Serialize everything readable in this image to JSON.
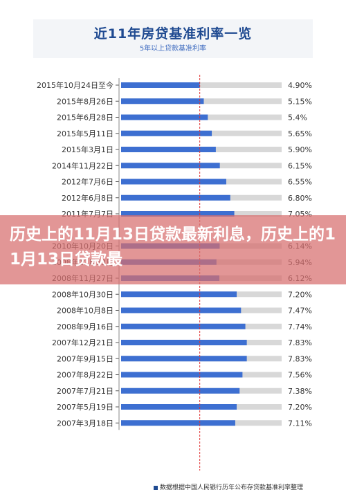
{
  "title": "近11年房贷基准利率一览",
  "subtitle": "5年以上贷款基准利率",
  "footnote": "数据根据中国人民银行历年公布存贷款基准利率整理",
  "headline": "历史上的11月13日贷款最新利息，历史上的11月13日贷款最",
  "colors": {
    "bar": "#3d6fd1",
    "track": "#d8d8d8",
    "title": "#1f4a91",
    "overlay": "#d76e6e",
    "reference_line": "#e03030"
  },
  "chart_data": {
    "type": "bar",
    "orientation": "horizontal",
    "title": "近11年房贷基准利率一览",
    "subtitle": "5年以上贷款基准利率",
    "categories": [
      "2015年10月24日至今",
      "2015年8月26日",
      "2015年6月28日",
      "2015年5月11日",
      "2015年3月1日",
      "2014年11月22日",
      "2012年7月6日",
      "2012年6月8日",
      "2011年7月7日",
      "",
      "2010年10月20日",
      "2008年12月23日",
      "2008年11月27日",
      "2008年10月30日",
      "2008年10月8日",
      "2008年9月16日",
      "2007年12月21日",
      "2007年9月15日",
      "2007年8月22日",
      "2007年7月21日",
      "2007年5月19日",
      "2007年3月18日"
    ],
    "values": [
      4.9,
      5.15,
      5.4,
      5.65,
      5.9,
      6.15,
      6.55,
      6.8,
      7.05,
      null,
      6.14,
      5.94,
      6.12,
      7.2,
      7.47,
      7.74,
      7.83,
      7.83,
      7.56,
      7.38,
      7.2,
      7.11
    ],
    "value_labels": [
      "4.90%",
      "5.15%",
      "5.4%",
      "5.65%",
      "5.90%",
      "6.15%",
      "6.55%",
      "6.80%",
      "7.05%",
      "",
      "6.14%",
      "5.94%",
      "6.12%",
      "7.20%",
      "7.47%",
      "7.74%",
      "7.83%",
      "7.83%",
      "7.56%",
      "7.38%",
      "7.20%",
      "7.11%"
    ],
    "xlim": [
      0,
      10
    ],
    "reference_line": 4.9
  }
}
